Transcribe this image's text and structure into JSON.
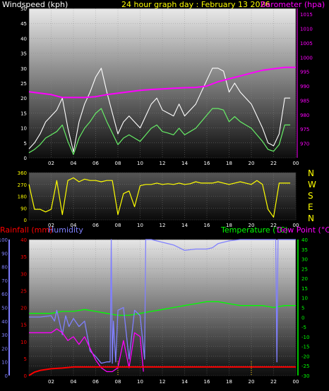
{
  "header": {
    "wind_label": "Windspeed (kph)",
    "title": "24 hour graph day : February 13 2026",
    "baro_label": "Barometer (hpa)"
  },
  "direction_letters": [
    "N",
    "W",
    "S",
    "E",
    "N"
  ],
  "bottom_header": {
    "rain_label": "Rainfall (mm)",
    "humidity_label": "Humidity",
    "temp_label": "Temperature (°C)",
    "dew_label": "Dew Point (°C)"
  },
  "colors": {
    "wind_gust": "#ffffff",
    "wind_avg": "#66ee66",
    "barometer": "#ff00ff",
    "direction": "#ffff00",
    "rain": "#ff0000",
    "humidity": "#8080ff",
    "temperature": "#00ff00",
    "dewpoint": "#ff00ff"
  },
  "chart_data": [
    {
      "type": "line",
      "name": "wind-barometer",
      "x_ticks": [
        "02",
        "04",
        "06",
        "08",
        "10",
        "12",
        "14",
        "16",
        "18",
        "20",
        "22",
        "00"
      ],
      "xlim": [
        0,
        24
      ],
      "ylim_left": [
        0,
        50
      ],
      "yticks_left": [
        0,
        5,
        10,
        15,
        20,
        25,
        30,
        35,
        40,
        45,
        50
      ],
      "ylim_right": [
        965,
        1017
      ],
      "yticks_right": [
        970,
        975,
        980,
        985,
        990,
        995,
        1000,
        1005,
        1010,
        1015
      ],
      "series": [
        {
          "name": "Windspeed (kph)",
          "axis": "left",
          "x": [
            0,
            0.5,
            1,
            1.5,
            2,
            2.5,
            3,
            3.5,
            4,
            4.5,
            5,
            5.5,
            6,
            6.5,
            7,
            7.5,
            8,
            8.5,
            9,
            9.5,
            10,
            10.5,
            11,
            11.5,
            12,
            12.5,
            13,
            13.5,
            14,
            14.5,
            15,
            15.5,
            16,
            16.5,
            17,
            17.5,
            18,
            18.5,
            19,
            19.5,
            20,
            20.5,
            21,
            21.5,
            22,
            22.5,
            23,
            23.5
          ],
          "y": [
            3,
            5,
            8,
            12,
            14,
            16,
            20,
            10,
            2,
            12,
            18,
            22,
            27,
            30,
            22,
            15,
            8,
            12,
            14,
            12,
            10,
            14,
            18,
            20,
            16,
            15,
            14,
            18,
            14,
            16,
            18,
            22,
            26,
            30,
            30,
            29,
            22,
            25,
            22,
            20,
            18,
            14,
            10,
            5,
            4,
            8,
            20,
            20
          ]
        },
        {
          "name": "Barometer (hpa)",
          "axis": "right",
          "x": [
            0,
            1,
            2,
            3,
            4,
            5,
            6,
            7,
            8,
            9,
            10,
            11,
            12,
            13,
            14,
            15,
            16,
            17,
            18,
            19,
            20,
            21,
            22,
            23,
            24
          ],
          "y": [
            988.0,
            987.5,
            987.0,
            986.0,
            986.0,
            986.0,
            986.3,
            987.0,
            987.5,
            988.0,
            988.5,
            988.8,
            989.0,
            989.2,
            989.4,
            989.5,
            990.0,
            991.5,
            992.5,
            993.5,
            994.5,
            995.5,
            996.0,
            996.5,
            996.5
          ]
        }
      ]
    },
    {
      "type": "line",
      "name": "wind-direction",
      "x_ticks": [
        "02",
        "04",
        "06",
        "08",
        "10",
        "12",
        "14",
        "16",
        "18",
        "20",
        "22",
        "00"
      ],
      "xlim": [
        0,
        24
      ],
      "ylim": [
        0,
        360
      ],
      "yticks": [
        0,
        90,
        180,
        270,
        360
      ],
      "series": [
        {
          "name": "Wind direction",
          "x": [
            0,
            0.5,
            1,
            1.5,
            2,
            2.5,
            3,
            3.5,
            4,
            4.5,
            5,
            5.5,
            6,
            6.5,
            7,
            7.5,
            8,
            8.5,
            9,
            9.5,
            10,
            10.5,
            11,
            11.5,
            12,
            12.5,
            13,
            13.5,
            14,
            14.5,
            15,
            15.5,
            16,
            16.5,
            17,
            17.5,
            18,
            18.5,
            19,
            19.5,
            20,
            20.5,
            21,
            21.5,
            22,
            22.5,
            23,
            23.5
          ],
          "y": [
            270,
            80,
            80,
            60,
            80,
            300,
            40,
            300,
            320,
            290,
            310,
            300,
            300,
            290,
            300,
            300,
            40,
            200,
            220,
            100,
            260,
            270,
            270,
            280,
            270,
            275,
            270,
            280,
            270,
            275,
            290,
            280,
            280,
            280,
            290,
            280,
            270,
            280,
            290,
            280,
            270,
            300,
            270,
            80,
            20,
            280,
            280,
            280
          ]
        }
      ]
    },
    {
      "type": "line",
      "name": "rain-humidity-temperature",
      "x_ticks": [
        "02",
        "04",
        "06",
        "08",
        "10",
        "12",
        "14",
        "16",
        "18",
        "20",
        "22",
        "00"
      ],
      "xlim": [
        0,
        24
      ],
      "ylim_rain": [
        0,
        40
      ],
      "yticks_rain": [
        0,
        5,
        10,
        15,
        20,
        25,
        30,
        35,
        40
      ],
      "ylim_humidity": [
        0,
        100
      ],
      "yticks_humidity": [
        0,
        10,
        20,
        30,
        40,
        50,
        60,
        70,
        80,
        90,
        100
      ],
      "ylim_temp": [
        -30,
        40
      ],
      "yticks_temp": [
        -30,
        -25,
        -20,
        -15,
        -10,
        -5,
        0,
        5,
        10,
        15,
        20,
        25,
        30,
        35,
        40
      ],
      "series": [
        {
          "name": "Rainfall (mm)",
          "axis": "rain",
          "x": [
            0,
            0.5,
            1,
            2,
            3,
            4,
            24
          ],
          "y": [
            0,
            1,
            1.5,
            2,
            2.2,
            2.5,
            2.5
          ]
        },
        {
          "name": "Humidity",
          "axis": "humidity",
          "x": [
            0,
            1,
            2,
            2.3,
            2.5,
            3,
            3.3,
            3.6,
            4,
            4.5,
            5,
            5.5,
            6,
            6.5,
            7,
            7.3,
            7.4,
            7.5,
            7.6,
            7.8,
            8,
            8.5,
            9,
            9.5,
            10,
            10.4,
            10.5,
            10.6,
            11,
            12,
            13,
            14,
            15,
            16,
            16.5,
            17,
            18,
            19,
            20,
            21,
            22,
            22.2,
            22.3,
            22.4,
            23,
            24
          ],
          "y": [
            43,
            43,
            44,
            40,
            48,
            30,
            44,
            36,
            42,
            36,
            40,
            18,
            14,
            9,
            10,
            10,
            100,
            9,
            40,
            10,
            48,
            50,
            12,
            48,
            44,
            12,
            100,
            100,
            100,
            98,
            96,
            92,
            93,
            93,
            94,
            97,
            99,
            100,
            100,
            100,
            100,
            100,
            10,
            100,
            100,
            100
          ]
        },
        {
          "name": "Temperature (°C)",
          "axis": "temp",
          "x": [
            0,
            1,
            2,
            3,
            4,
            5,
            6,
            7,
            8,
            9,
            10,
            11,
            12,
            13,
            14,
            15,
            16,
            17,
            18,
            19,
            20,
            21,
            22,
            23,
            24
          ],
          "y": [
            2,
            2,
            2,
            3,
            3,
            4,
            3,
            2,
            1,
            1,
            2,
            3,
            4,
            5,
            6,
            7,
            8,
            8,
            7,
            6,
            6,
            6,
            5,
            6,
            6
          ]
        },
        {
          "name": "Dew Point (°C)",
          "axis": "temp",
          "x": [
            0,
            1,
            2,
            2.5,
            3,
            3.5,
            4,
            4.5,
            5,
            5.5,
            6,
            6.5,
            7,
            7.5,
            8,
            8.5,
            9,
            9.5,
            10,
            10.3
          ],
          "y": [
            -8,
            -8,
            -8,
            -6,
            -8,
            -12,
            -10,
            -14,
            -10,
            -16,
            -22,
            -26,
            -28,
            -28,
            -26,
            -12,
            -26,
            -8,
            -10,
            -28
          ]
        }
      ]
    }
  ]
}
